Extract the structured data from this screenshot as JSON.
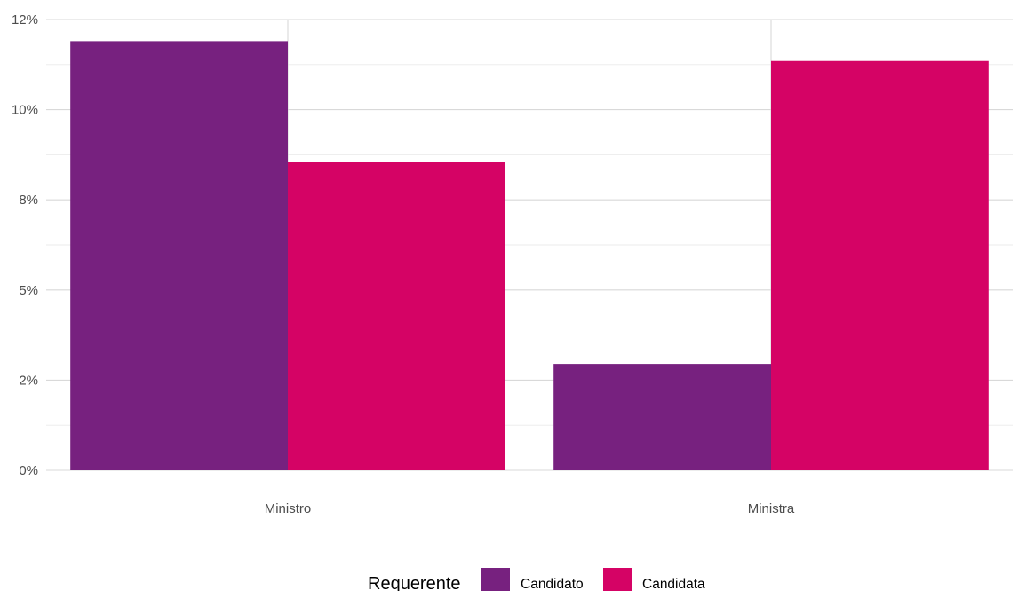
{
  "chart_data": {
    "type": "bar",
    "categories": [
      "Ministro",
      "Ministra"
    ],
    "series": [
      {
        "name": "Candidato",
        "values": [
          11.9,
          2.95
        ]
      },
      {
        "name": "Candidata",
        "values": [
          8.55,
          11.35
        ]
      }
    ],
    "yticks": [
      0,
      2.5,
      5,
      7.5,
      10,
      12.5
    ],
    "ytick_labels": [
      "0%",
      "2%",
      "5%",
      "8%",
      "10%",
      "12%"
    ],
    "ylim": [
      0,
      12.5
    ],
    "xlabel": "",
    "ylabel": "",
    "grid": true,
    "legend": {
      "title": "Requerente",
      "position": "bottom"
    },
    "colors": [
      "#77217f",
      "#d50365"
    ]
  }
}
